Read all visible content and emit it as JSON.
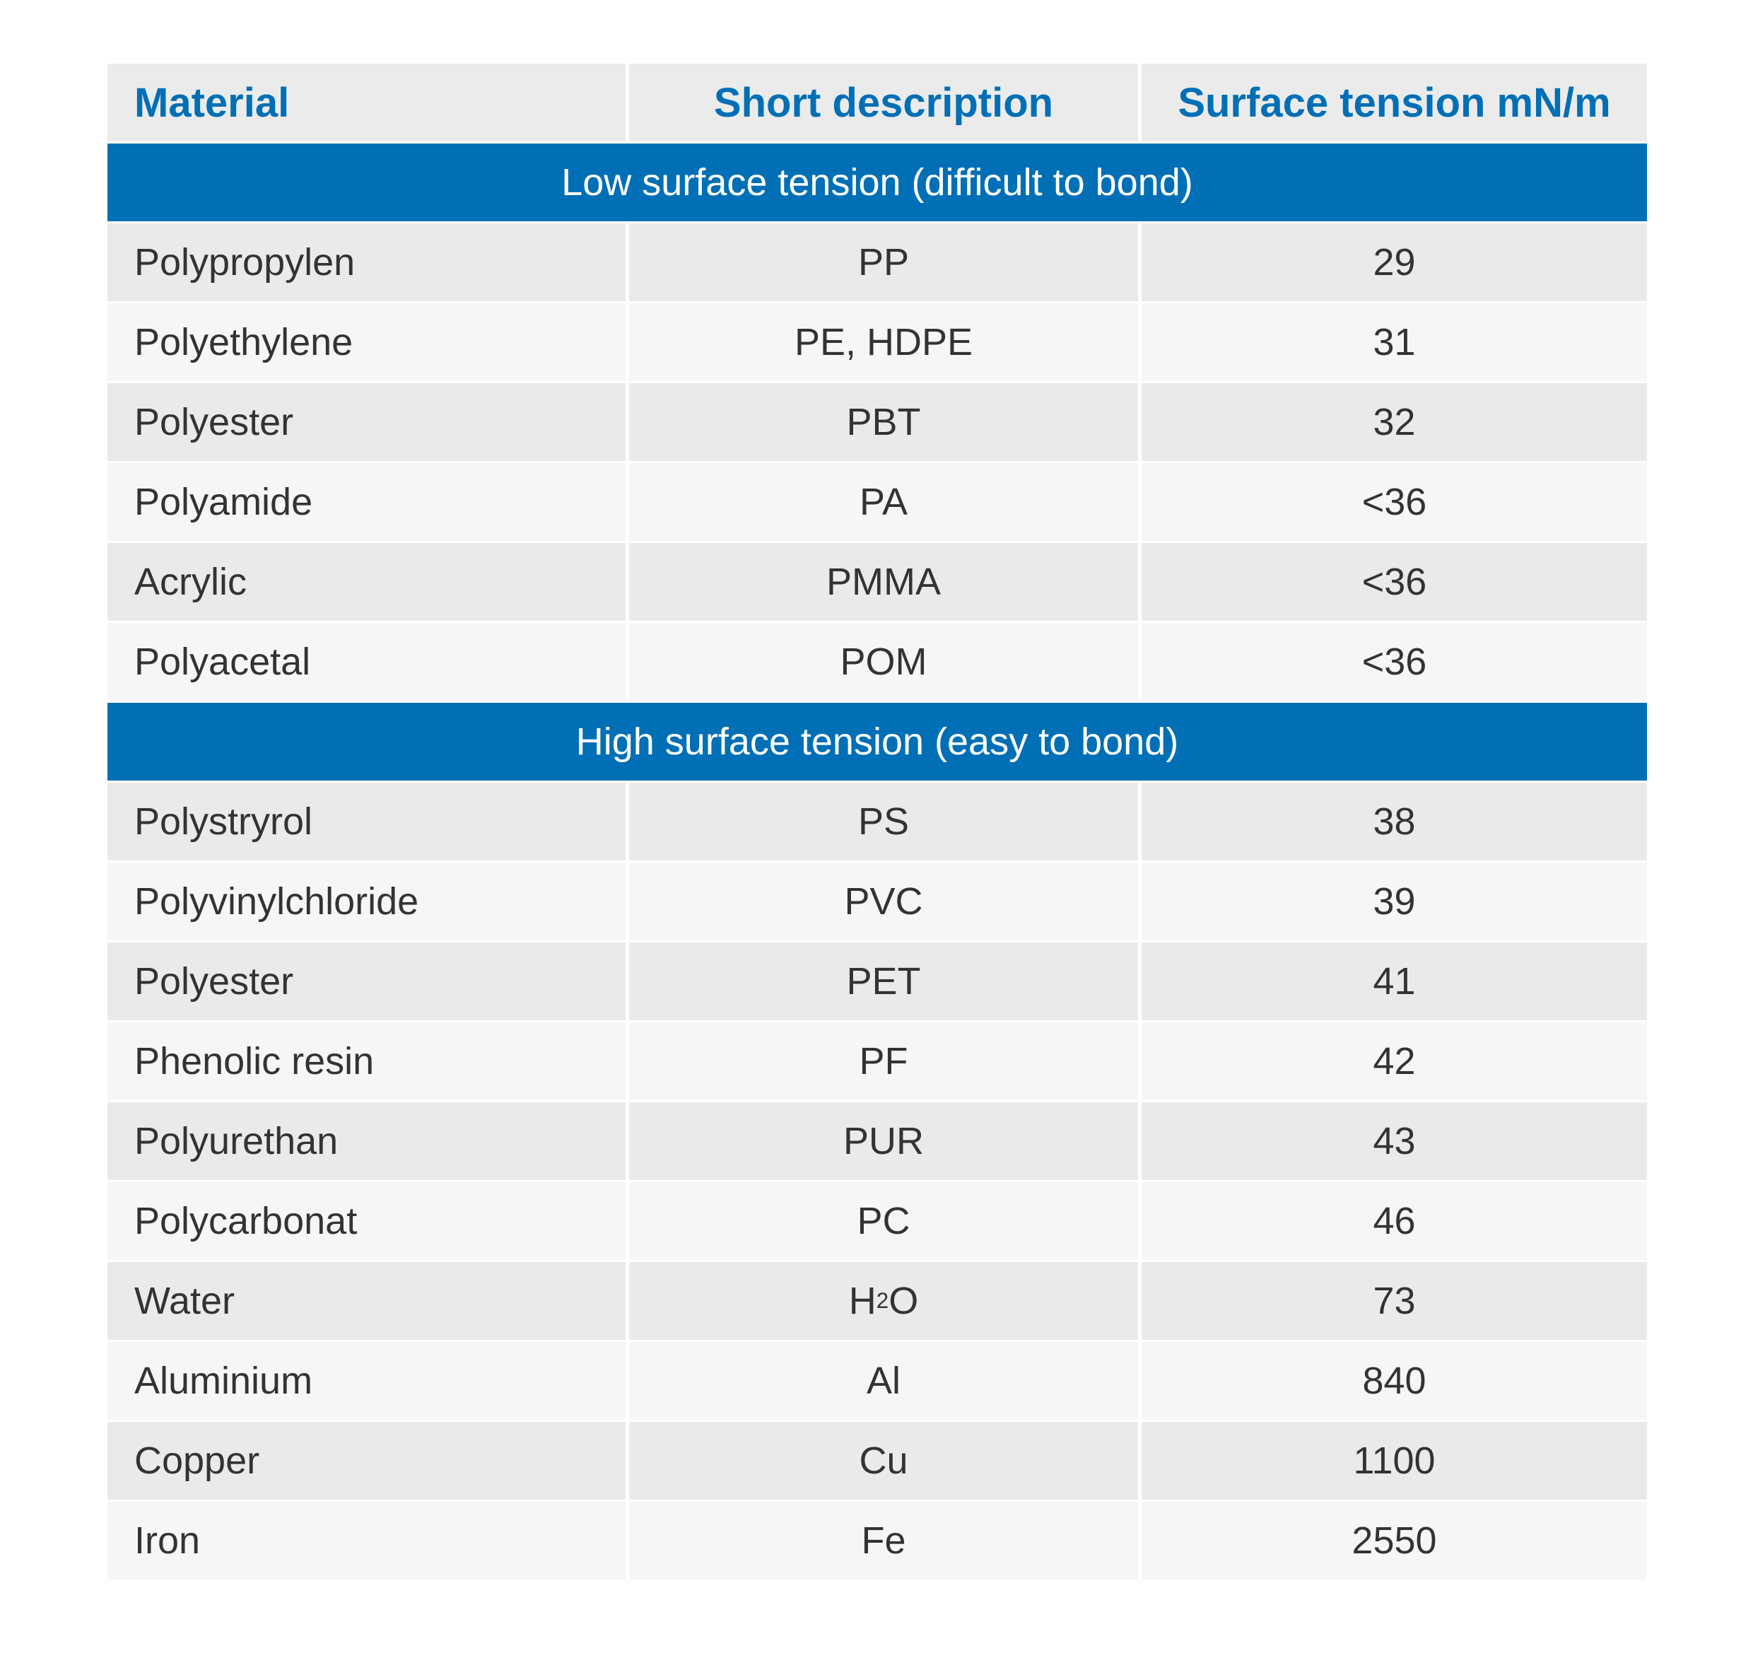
{
  "colors": {
    "accent_blue": "#006fb5",
    "header_bg": "#ebebeb",
    "row_dark_bg": "#eaeaea",
    "row_light_bg": "#f6f6f5",
    "band_text": "#ffffff",
    "body_text": "#333333"
  },
  "table": {
    "columns": [
      "Material",
      "Short description",
      "Surface tension mN/m"
    ],
    "sections": [
      {
        "header": "Low surface tension (difficult to bond)",
        "rows": [
          {
            "material": "Polypropylen",
            "short_description": "PP",
            "surface_tension": "29"
          },
          {
            "material": "Polyethylene",
            "short_description": "PE, HDPE",
            "surface_tension": "31"
          },
          {
            "material": "Polyester",
            "short_description": "PBT",
            "surface_tension": "32"
          },
          {
            "material": "Polyamide",
            "short_description": "PA",
            "surface_tension": "<36"
          },
          {
            "material": "Acrylic",
            "short_description": "PMMA",
            "surface_tension": "<36"
          },
          {
            "material": "Polyacetal",
            "short_description": "POM",
            "surface_tension": "<36"
          }
        ]
      },
      {
        "header": "High surface tension (easy to bond)",
        "rows": [
          {
            "material": "Polystryrol",
            "short_description": "PS",
            "surface_tension": "38"
          },
          {
            "material": "Polyvinylchloride",
            "short_description": "PVC",
            "surface_tension": "39"
          },
          {
            "material": "Polyester",
            "short_description": "PET",
            "surface_tension": "41"
          },
          {
            "material": "Phenolic resin",
            "short_description": "PF",
            "surface_tension": "42"
          },
          {
            "material": "Polyurethan",
            "short_description": "PUR",
            "surface_tension": "43"
          },
          {
            "material": "Polycarbonat",
            "short_description": "PC",
            "surface_tension": "46"
          },
          {
            "material": "Water",
            "short_description": "H₂O",
            "surface_tension": "73"
          },
          {
            "material": "Aluminium",
            "short_description": "Al",
            "surface_tension": "840"
          },
          {
            "material": "Copper",
            "short_description": "Cu",
            "surface_tension": "1100"
          },
          {
            "material": "Iron",
            "short_description": "Fe",
            "surface_tension": "2550"
          }
        ]
      }
    ]
  }
}
